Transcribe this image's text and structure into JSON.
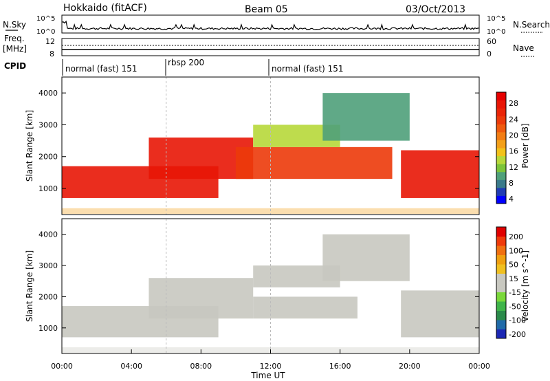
{
  "header": {
    "station": "Hokkaido (fitACF)",
    "beam": "Beam 05",
    "date": "03/Oct/2013"
  },
  "top_panels": {
    "nsky_label": "N.Sky",
    "nsearch_label": "N.Search",
    "nsky_ticks": [
      "10^5",
      "10^0"
    ],
    "nsky_ticks_right": [
      "10^5",
      "10^0"
    ],
    "freq_label_1": "Freq.",
    "freq_label_2": "[MHz]",
    "freq_ticks": [
      "12",
      "8"
    ],
    "nave_ticks": [
      "60",
      "0"
    ],
    "nave_label": "Nave",
    "cpid_label": "CPID",
    "cpid_segments": [
      "normal (fast) 151",
      "rbsp 200",
      "normal (fast) 151"
    ]
  },
  "axes": {
    "ylabel": "Slant Range [km]",
    "yticks": [
      "4000",
      "3000",
      "2000",
      "1000"
    ],
    "xticks": [
      "00:00",
      "04:00",
      "08:00",
      "12:00",
      "16:00",
      "20:00",
      "00:00"
    ],
    "xlabel": "Time UT"
  },
  "colorbars": {
    "power": {
      "label": "Power [dB]",
      "ticks": [
        "28",
        "24",
        "20",
        "16",
        "12",
        "8",
        "4"
      ],
      "colors": [
        "#0000ff",
        "#203cb4",
        "#3a7a8a",
        "#4fa07a",
        "#7cc43a",
        "#b7d83a",
        "#f2c21a",
        "#f3a01a",
        "#f27d14",
        "#ef5a0e",
        "#ec3a0a",
        "#ea2508",
        "#e81606",
        "#e60000"
      ]
    },
    "velocity": {
      "label": "Velocity [m s^-1]",
      "ticks": [
        "200",
        "100",
        "50",
        "15",
        "-15",
        "-50",
        "-100",
        "-200"
      ],
      "colors": [
        "#1c28b4",
        "#1f6aa8",
        "#2a8a4a",
        "#3fb44a",
        "#7ad83a",
        "#c8c8c0",
        "#c8c8c0",
        "#f0c020",
        "#f0a010",
        "#f07010",
        "#ef3a0a",
        "#e00000"
      ]
    }
  },
  "chart_data": [
    {
      "type": "heatmap",
      "title": "Power",
      "ylabel": "Slant Range [km]",
      "xlabel": "",
      "xlim": [
        "00:00",
        "24:00"
      ],
      "ylim": [
        180,
        4500
      ],
      "colorbar_label": "Power [dB]",
      "colorbar_range": [
        0,
        30
      ],
      "regions": [
        {
          "t_start": 0.0,
          "t_end": 9.0,
          "range_min": 700,
          "range_max": 1700,
          "value": 28
        },
        {
          "t_start": 5.0,
          "t_end": 11.0,
          "range_min": 1300,
          "range_max": 2600,
          "value": 28
        },
        {
          "t_start": 10.0,
          "t_end": 19.0,
          "range_min": 1300,
          "range_max": 2300,
          "value": 22
        },
        {
          "t_start": 11.0,
          "t_end": 16.0,
          "range_min": 2300,
          "range_max": 3000,
          "value": 12
        },
        {
          "t_start": 15.0,
          "t_end": 20.0,
          "range_min": 2500,
          "range_max": 4000,
          "value": 6
        },
        {
          "t_start": 19.5,
          "t_end": 24.0,
          "range_min": 700,
          "range_max": 2200,
          "value": 28
        }
      ]
    },
    {
      "type": "heatmap",
      "title": "Velocity",
      "ylabel": "Slant Range [km]",
      "xlabel": "Time UT",
      "xlim": [
        "00:00",
        "24:00"
      ],
      "ylim": [
        180,
        4500
      ],
      "colorbar_label": "Velocity [m s^-1]",
      "colorbar_range": [
        -250,
        250
      ],
      "regions": [
        {
          "t_start": 0.0,
          "t_end": 9.0,
          "range_min": 700,
          "range_max": 1700,
          "value": 0
        },
        {
          "t_start": 5.0,
          "t_end": 11.0,
          "range_min": 1300,
          "range_max": 2600,
          "value": 0
        },
        {
          "t_start": 11.0,
          "t_end": 17.0,
          "range_min": 1300,
          "range_max": 2000,
          "value": 40
        },
        {
          "t_start": 11.0,
          "t_end": 16.0,
          "range_min": 2300,
          "range_max": 3000,
          "value": 0
        },
        {
          "t_start": 15.0,
          "t_end": 20.0,
          "range_min": 2500,
          "range_max": 4000,
          "value": -40
        },
        {
          "t_start": 19.5,
          "t_end": 24.0,
          "range_min": 700,
          "range_max": 2200,
          "value": 0
        }
      ]
    }
  ]
}
